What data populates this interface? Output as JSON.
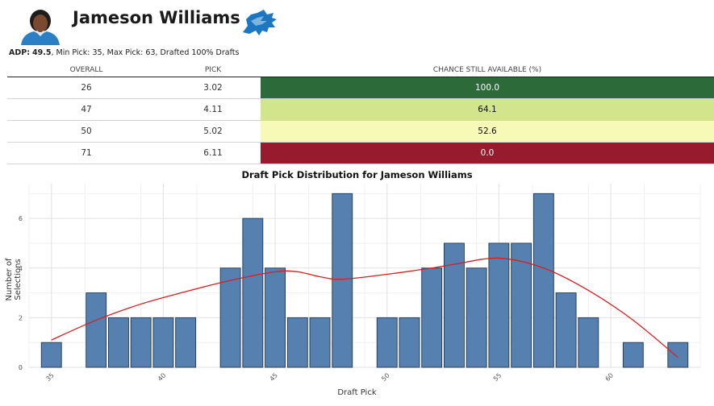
{
  "player": {
    "name": "Jameson Williams",
    "avatar_icon": "player-headshot-icon",
    "team_logo_icon": "lions-logo-icon",
    "team_color": "#0076B6"
  },
  "summary": {
    "adp_label": "ADP:",
    "adp_value": "49.5",
    "details": ", Min Pick: 35, Max Pick: 63, Drafted 100% Drafts"
  },
  "availability": {
    "headers": [
      "OVERALL",
      "PICK",
      "CHANCE STILL AVAILABLE (%)"
    ],
    "rows": [
      {
        "overall": "26",
        "pick": "3.02",
        "chance": "100.0",
        "color": "#2d6a3a",
        "dark": true
      },
      {
        "overall": "47",
        "pick": "4.11",
        "chance": "64.1",
        "color": "#d2e48c",
        "dark": false
      },
      {
        "overall": "50",
        "pick": "5.02",
        "chance": "52.6",
        "color": "#f7f9b6",
        "dark": false
      },
      {
        "overall": "71",
        "pick": "6.11",
        "chance": "0.0",
        "color": "#961b2d",
        "dark": true
      }
    ]
  },
  "chart_data": {
    "type": "bar",
    "title": "Draft Pick Distribution for Jameson Williams",
    "xlabel": "Draft Pick",
    "ylabel": "Number of Selections",
    "x": [
      35,
      37,
      38,
      39,
      40,
      41,
      43,
      44,
      45,
      46,
      47,
      48,
      50,
      51,
      52,
      53,
      54,
      55,
      56,
      57,
      58,
      59,
      61,
      63
    ],
    "values": [
      1,
      3,
      2,
      2,
      2,
      2,
      4,
      6,
      4,
      2,
      2,
      7,
      2,
      2,
      4,
      5,
      4,
      5,
      5,
      7,
      3,
      2,
      1,
      1
    ],
    "xticks": [
      35,
      40,
      45,
      50,
      55,
      60
    ],
    "yticks": [
      0,
      2,
      4,
      6
    ],
    "xlim": [
      34,
      64
    ],
    "ylim": [
      0,
      7.4
    ],
    "bar_color": "#5580b0",
    "smooth_line_color": "#d62020",
    "smooth_curve": {
      "x": [
        35,
        37,
        39,
        41,
        43,
        45,
        46,
        47,
        48,
        50,
        52,
        53,
        55,
        57,
        59,
        61,
        63
      ],
      "y": [
        1.1,
        1.9,
        2.55,
        3.05,
        3.5,
        3.85,
        3.85,
        3.65,
        3.55,
        3.75,
        4.0,
        4.15,
        4.4,
        4.0,
        3.1,
        1.9,
        0.4
      ]
    },
    "grid": true
  }
}
